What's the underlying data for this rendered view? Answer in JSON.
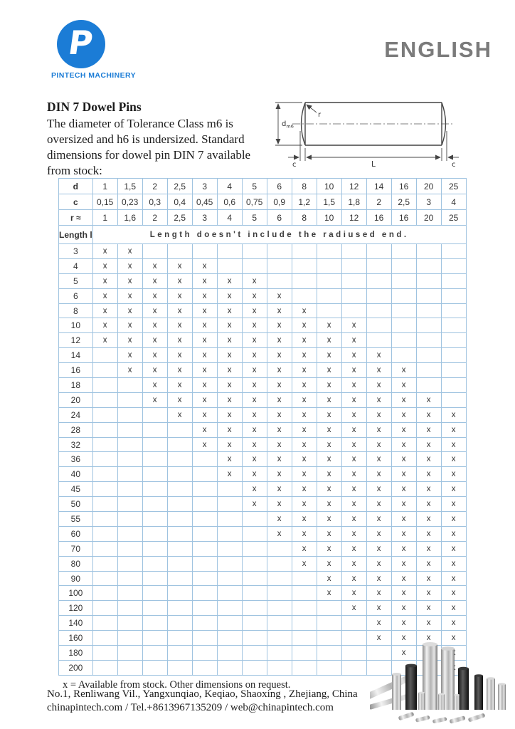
{
  "header": {
    "language_label": "ENGLISH",
    "logo": {
      "monogram": "P",
      "caption": "PINTECH MACHINERY",
      "brand_color": "#1b7cd6"
    }
  },
  "intro": {
    "title": "DIN 7 Dowel Pins",
    "body": "The diameter of Tolerance Class m6 is oversized and h6 is undersized. Standard dimensions for dowel pin DIN 7 available from stock:"
  },
  "drawing": {
    "diameter_label": "d",
    "diameter_sub": "m6",
    "radius_label": "r",
    "length_label": "L",
    "chamfer_left_label": "c",
    "chamfer_right_label": "c"
  },
  "table": {
    "mark": "x",
    "header_rows": [
      {
        "label": "d",
        "values": [
          "1",
          "1,5",
          "2",
          "2,5",
          "3",
          "4",
          "5",
          "6",
          "8",
          "10",
          "12",
          "14",
          "16",
          "20",
          "25"
        ]
      },
      {
        "label": "c",
        "values": [
          "0,15",
          "0,23",
          "0,3",
          "0,4",
          "0,45",
          "0,6",
          "0,75",
          "0,9",
          "1,2",
          "1,5",
          "1,8",
          "2",
          "2,5",
          "3",
          "4"
        ]
      },
      {
        "label": "r ≈",
        "values": [
          "1",
          "1,6",
          "2",
          "2,5",
          "3",
          "4",
          "5",
          "6",
          "8",
          "10",
          "12",
          "16",
          "16",
          "20",
          "25"
        ]
      }
    ],
    "length_header": {
      "label": "Length l",
      "note": "Length doesn't include the radiused end."
    },
    "rows": [
      {
        "length": "3",
        "from": 0,
        "to": 1
      },
      {
        "length": "4",
        "from": 0,
        "to": 4
      },
      {
        "length": "5",
        "from": 0,
        "to": 6
      },
      {
        "length": "6",
        "from": 0,
        "to": 7
      },
      {
        "length": "8",
        "from": 0,
        "to": 8
      },
      {
        "length": "10",
        "from": 0,
        "to": 10
      },
      {
        "length": "12",
        "from": 0,
        "to": 10
      },
      {
        "length": "14",
        "from": 1,
        "to": 11
      },
      {
        "length": "16",
        "from": 1,
        "to": 12
      },
      {
        "length": "18",
        "from": 2,
        "to": 12
      },
      {
        "length": "20",
        "from": 2,
        "to": 13
      },
      {
        "length": "24",
        "from": 3,
        "to": 14
      },
      {
        "length": "28",
        "from": 4,
        "to": 14
      },
      {
        "length": "32",
        "from": 4,
        "to": 14
      },
      {
        "length": "36",
        "from": 5,
        "to": 14
      },
      {
        "length": "40",
        "from": 5,
        "to": 14
      },
      {
        "length": "45",
        "from": 6,
        "to": 14
      },
      {
        "length": "50",
        "from": 6,
        "to": 14
      },
      {
        "length": "55",
        "from": 7,
        "to": 14
      },
      {
        "length": "60",
        "from": 7,
        "to": 14
      },
      {
        "length": "70",
        "from": 8,
        "to": 14
      },
      {
        "length": "80",
        "from": 8,
        "to": 14
      },
      {
        "length": "90",
        "from": 9,
        "to": 14
      },
      {
        "length": "100",
        "from": 9,
        "to": 14
      },
      {
        "length": "120",
        "from": 10,
        "to": 14
      },
      {
        "length": "140",
        "from": 11,
        "to": 14
      },
      {
        "length": "160",
        "from": 11,
        "to": 14
      },
      {
        "length": "180",
        "from": 12,
        "to": 14
      },
      {
        "length": "200",
        "from": 13,
        "to": 14
      }
    ]
  },
  "footnote": "x = Available from stock. Other dimensions on request.",
  "footer": {
    "address": "No.1, Renliwang Vil., Yangxunqiao, Keqiao, Shaoxing , Zhejiang, China",
    "contact": "chinapintech.com / Tel.+8613967135209 / web@chinapintech.com"
  }
}
